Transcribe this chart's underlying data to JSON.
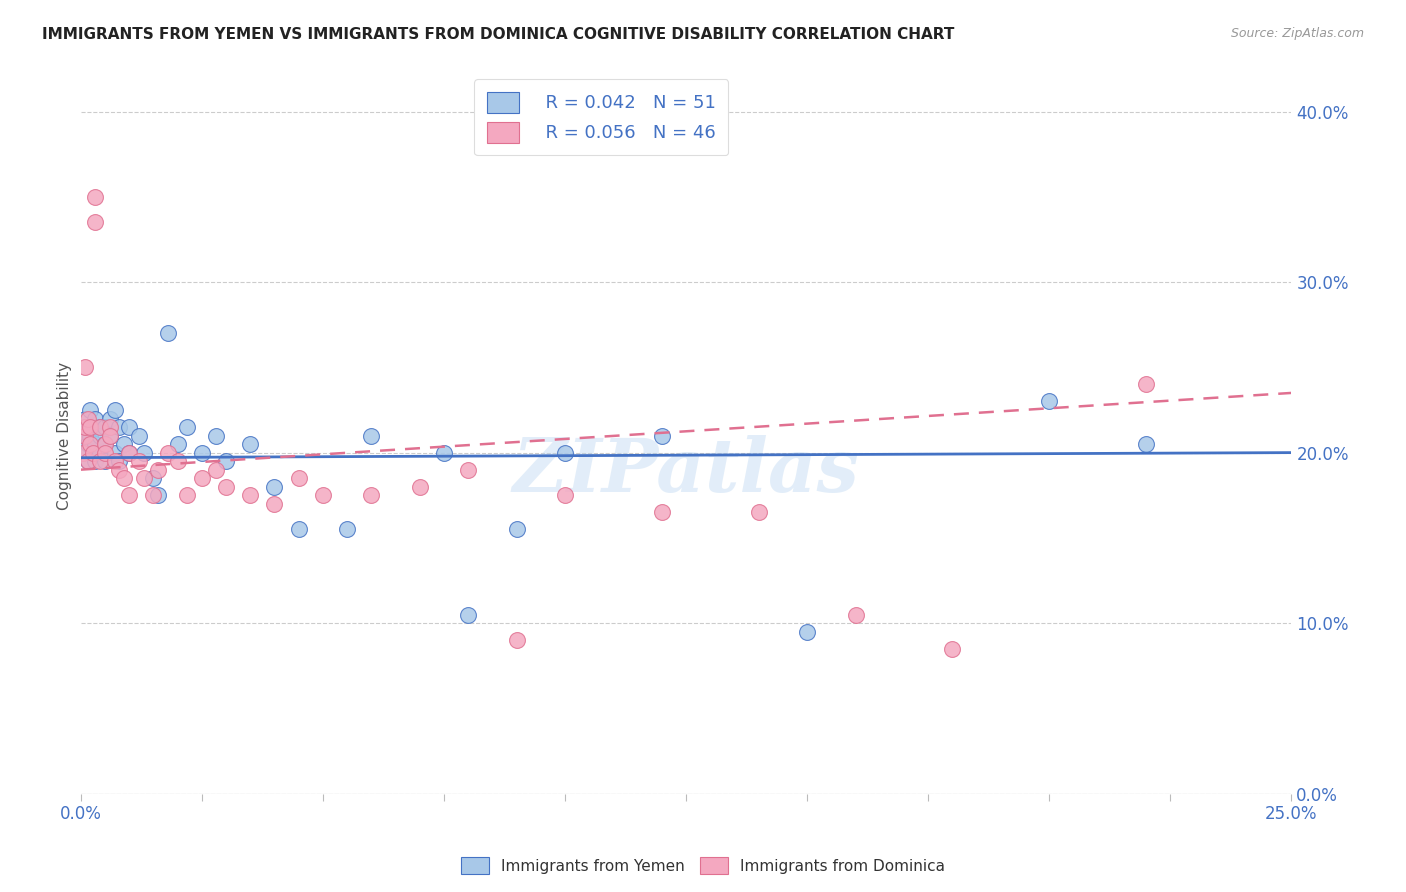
{
  "title": "IMMIGRANTS FROM YEMEN VS IMMIGRANTS FROM DOMINICA COGNITIVE DISABILITY CORRELATION CHART",
  "source": "Source: ZipAtlas.com",
  "ylabel": "Cognitive Disability",
  "xlim": [
    0.0,
    0.25
  ],
  "ylim": [
    0.0,
    0.42
  ],
  "x_ticks": [
    0.0,
    0.025,
    0.05,
    0.075,
    0.1,
    0.125,
    0.15,
    0.175,
    0.2,
    0.225,
    0.25
  ],
  "y_ticks": [
    0.0,
    0.1,
    0.2,
    0.3,
    0.4
  ],
  "legend_r_yemen": "R = 0.042",
  "legend_n_yemen": "N = 51",
  "legend_r_dominica": "R = 0.056",
  "legend_n_dominica": "N = 46",
  "color_yemen": "#a8c8e8",
  "color_dominica": "#f4a8c0",
  "line_color_yemen": "#4472c4",
  "line_color_dominica": "#e07090",
  "watermark": "ZIPatlas",
  "yemen_x": [
    0.0005,
    0.0008,
    0.001,
    0.001,
    0.0015,
    0.0015,
    0.002,
    0.002,
    0.0025,
    0.0025,
    0.003,
    0.003,
    0.003,
    0.004,
    0.004,
    0.004,
    0.005,
    0.005,
    0.005,
    0.006,
    0.006,
    0.007,
    0.007,
    0.008,
    0.008,
    0.009,
    0.01,
    0.01,
    0.012,
    0.013,
    0.015,
    0.016,
    0.018,
    0.02,
    0.022,
    0.025,
    0.028,
    0.03,
    0.035,
    0.04,
    0.045,
    0.055,
    0.06,
    0.075,
    0.08,
    0.09,
    0.1,
    0.12,
    0.15,
    0.2,
    0.22
  ],
  "yemen_y": [
    0.2,
    0.21,
    0.22,
    0.215,
    0.205,
    0.195,
    0.21,
    0.225,
    0.215,
    0.2,
    0.22,
    0.205,
    0.195,
    0.215,
    0.2,
    0.21,
    0.205,
    0.215,
    0.195,
    0.22,
    0.21,
    0.2,
    0.225,
    0.215,
    0.195,
    0.205,
    0.2,
    0.215,
    0.21,
    0.2,
    0.185,
    0.175,
    0.27,
    0.205,
    0.215,
    0.2,
    0.21,
    0.195,
    0.205,
    0.18,
    0.155,
    0.155,
    0.21,
    0.2,
    0.105,
    0.155,
    0.2,
    0.21,
    0.095,
    0.23,
    0.205
  ],
  "dominica_x": [
    0.0005,
    0.0008,
    0.001,
    0.001,
    0.0015,
    0.0015,
    0.002,
    0.002,
    0.0025,
    0.003,
    0.003,
    0.004,
    0.004,
    0.005,
    0.005,
    0.006,
    0.006,
    0.007,
    0.008,
    0.009,
    0.01,
    0.01,
    0.012,
    0.013,
    0.015,
    0.016,
    0.018,
    0.02,
    0.022,
    0.025,
    0.028,
    0.03,
    0.035,
    0.04,
    0.045,
    0.05,
    0.06,
    0.07,
    0.08,
    0.09,
    0.1,
    0.12,
    0.14,
    0.16,
    0.18,
    0.22
  ],
  "dominica_y": [
    0.2,
    0.21,
    0.25,
    0.215,
    0.195,
    0.22,
    0.205,
    0.215,
    0.2,
    0.335,
    0.35,
    0.215,
    0.195,
    0.205,
    0.2,
    0.215,
    0.21,
    0.195,
    0.19,
    0.185,
    0.2,
    0.175,
    0.195,
    0.185,
    0.175,
    0.19,
    0.2,
    0.195,
    0.175,
    0.185,
    0.19,
    0.18,
    0.175,
    0.17,
    0.185,
    0.175,
    0.175,
    0.18,
    0.19,
    0.09,
    0.175,
    0.165,
    0.165,
    0.105,
    0.085,
    0.24
  ],
  "line_y_start": 0.197,
  "line_y_end": 0.2,
  "dline_y_start": 0.19,
  "dline_y_end": 0.235
}
